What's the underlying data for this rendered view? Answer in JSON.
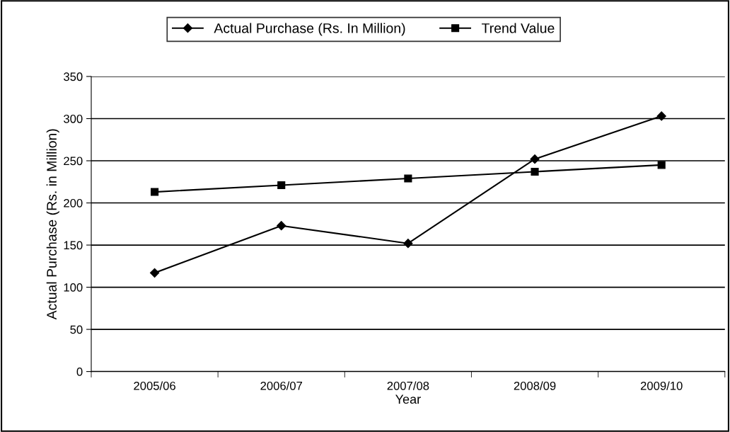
{
  "chart_data": {
    "type": "line",
    "xlabel": "Year",
    "ylabel": "Actual Purchase (Rs. in Million)",
    "categories": [
      "2005/06",
      "2006/07",
      "2007/08",
      "2008/09",
      "2009/10"
    ],
    "series": [
      {
        "name": "Actual Purchase (Rs. In Million)",
        "color": "#000000",
        "marker": "diamond",
        "values": [
          117,
          173,
          152,
          252,
          303
        ]
      },
      {
        "name": "Trend Value",
        "color": "#000000",
        "marker": "square",
        "values": [
          213,
          221,
          229,
          237,
          245
        ]
      }
    ],
    "ylim": [
      0,
      350
    ],
    "yticks": [
      0,
      50,
      100,
      150,
      200,
      250,
      300,
      350
    ],
    "grid": "y",
    "legend": "top",
    "line_style": "solid"
  }
}
